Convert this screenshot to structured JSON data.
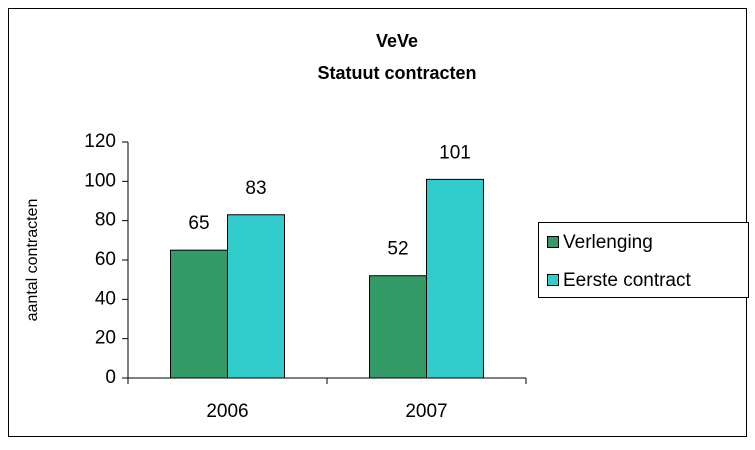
{
  "chart_data": {
    "type": "bar",
    "title": "VeVe",
    "subtitle": "Statuut contracten",
    "ylabel": "aantal contracten",
    "categories": [
      "2006",
      "2007"
    ],
    "series": [
      {
        "name": "Verlenging",
        "color": "#339966",
        "values": [
          65,
          52
        ]
      },
      {
        "name": "Eerste contract",
        "color": "#33cccc",
        "values": [
          83,
          101
        ]
      }
    ],
    "ylim": [
      0,
      120
    ],
    "yticks": [
      0,
      20,
      40,
      60,
      80,
      100,
      120
    ],
    "grid": false,
    "legend": "right"
  }
}
